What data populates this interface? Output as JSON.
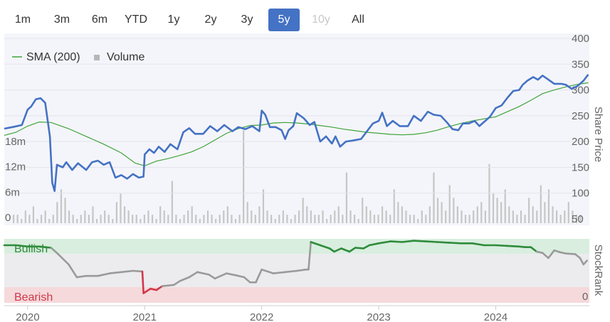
{
  "range_buttons": [
    {
      "label": "1m",
      "state": "normal"
    },
    {
      "label": "3m",
      "state": "normal"
    },
    {
      "label": "6m",
      "state": "normal"
    },
    {
      "label": "YTD",
      "state": "normal"
    },
    {
      "label": "1y",
      "state": "normal"
    },
    {
      "label": "2y",
      "state": "normal"
    },
    {
      "label": "3y",
      "state": "normal"
    },
    {
      "label": "5y",
      "state": "active"
    },
    {
      "label": "10y",
      "state": "disabled"
    },
    {
      "label": "All",
      "state": "normal"
    }
  ],
  "legend": {
    "sma_label": "SMA (200)",
    "volume_label": "Volume",
    "volume_icon": "square-icon"
  },
  "labels": {
    "price_axis_title": "Share Price",
    "rank_axis_title": "StockRank",
    "bullish": "Bullish",
    "bearish": "Bearish",
    "rank_zero": "0"
  },
  "colors": {
    "price_line": "#4472c4",
    "sma_line": "#3ea33a",
    "volume_bar": "#c6c6c6",
    "bullish_band": "#d9eedf",
    "bearish_band": "#f5d9db",
    "bullish_line": "#2e8b3a",
    "bearish_line": "#d0384a",
    "neutral_line": "#9a9a9a",
    "active_button": "#4472c4"
  },
  "chart_data": [
    {
      "type": "line",
      "name": "price",
      "x_ticks": [
        "2020",
        "2021",
        "2022",
        "2023",
        "2024"
      ],
      "x_range": [
        2019.8,
        2024.8
      ],
      "price_ticks": [
        50,
        100,
        150,
        200,
        250,
        300,
        350,
        400
      ],
      "price_range": [
        50,
        400
      ],
      "volume_ticks": [
        "0",
        "6m",
        "12m",
        "18m"
      ],
      "volume_range_m": [
        0,
        30
      ],
      "series": [
        {
          "name": "Price",
          "points": [
            [
              2019.8,
              225
            ],
            [
              2019.87,
              228
            ],
            [
              2019.95,
              232
            ],
            [
              2020.0,
              262
            ],
            [
              2020.03,
              268
            ],
            [
              2020.07,
              282
            ],
            [
              2020.11,
              284
            ],
            [
              2020.15,
              275
            ],
            [
              2020.19,
              210
            ],
            [
              2020.21,
              120
            ],
            [
              2020.23,
              104
            ],
            [
              2020.25,
              155
            ],
            [
              2020.3,
              150
            ],
            [
              2020.33,
              160
            ],
            [
              2020.38,
              145
            ],
            [
              2020.43,
              158
            ],
            [
              2020.5,
              145
            ],
            [
              2020.55,
              160
            ],
            [
              2020.6,
              163
            ],
            [
              2020.65,
              155
            ],
            [
              2020.7,
              160
            ],
            [
              2020.75,
              130
            ],
            [
              2020.8,
              135
            ],
            [
              2020.85,
              128
            ],
            [
              2020.9,
              137
            ],
            [
              2020.95,
              130
            ],
            [
              2020.99,
              132
            ],
            [
              2021.0,
              175
            ],
            [
              2021.04,
              185
            ],
            [
              2021.08,
              178
            ],
            [
              2021.12,
              190
            ],
            [
              2021.17,
              180
            ],
            [
              2021.22,
              195
            ],
            [
              2021.28,
              185
            ],
            [
              2021.33,
              218
            ],
            [
              2021.38,
              226
            ],
            [
              2021.43,
              215
            ],
            [
              2021.5,
              215
            ],
            [
              2021.56,
              230
            ],
            [
              2021.62,
              220
            ],
            [
              2021.68,
              232
            ],
            [
              2021.75,
              220
            ],
            [
              2021.8,
              228
            ],
            [
              2021.86,
              224
            ],
            [
              2021.92,
              230
            ],
            [
              2021.98,
              220
            ],
            [
              2022.0,
              260
            ],
            [
              2022.03,
              252
            ],
            [
              2022.07,
              228
            ],
            [
              2022.12,
              228
            ],
            [
              2022.17,
              222
            ],
            [
              2022.2,
              205
            ],
            [
              2022.23,
              222
            ],
            [
              2022.27,
              230
            ],
            [
              2022.3,
              255
            ],
            [
              2022.36,
              245
            ],
            [
              2022.41,
              232
            ],
            [
              2022.45,
              238
            ],
            [
              2022.5,
              200
            ],
            [
              2022.55,
              210
            ],
            [
              2022.6,
              196
            ],
            [
              2022.63,
              210
            ],
            [
              2022.67,
              190
            ],
            [
              2022.72,
              200
            ],
            [
              2022.78,
              202
            ],
            [
              2022.85,
              205
            ],
            [
              2022.9,
              220
            ],
            [
              2022.95,
              235
            ],
            [
              2023.0,
              240
            ],
            [
              2023.03,
              256
            ],
            [
              2023.07,
              230
            ],
            [
              2023.12,
              240
            ],
            [
              2023.18,
              230
            ],
            [
              2023.25,
              230
            ],
            [
              2023.3,
              250
            ],
            [
              2023.36,
              240
            ],
            [
              2023.42,
              258
            ],
            [
              2023.47,
              252
            ],
            [
              2023.53,
              250
            ],
            [
              2023.58,
              238
            ],
            [
              2023.63,
              224
            ],
            [
              2023.68,
              222
            ],
            [
              2023.72,
              235
            ],
            [
              2023.77,
              235
            ],
            [
              2023.82,
              240
            ],
            [
              2023.86,
              230
            ],
            [
              2023.91,
              240
            ],
            [
              2023.95,
              248
            ],
            [
              2024.0,
              265
            ],
            [
              2024.05,
              270
            ],
            [
              2024.1,
              285
            ],
            [
              2024.15,
              298
            ],
            [
              2024.2,
              300
            ],
            [
              2024.23,
              310
            ],
            [
              2024.27,
              318
            ],
            [
              2024.32,
              325
            ],
            [
              2024.36,
              320
            ],
            [
              2024.4,
              328
            ],
            [
              2024.45,
              320
            ],
            [
              2024.5,
              312
            ],
            [
              2024.56,
              312
            ],
            [
              2024.6,
              310
            ],
            [
              2024.65,
              302
            ],
            [
              2024.7,
              308
            ],
            [
              2024.75,
              318
            ],
            [
              2024.79,
              330
            ]
          ]
        },
        {
          "name": "SMA (200)",
          "points": [
            [
              2019.8,
              212
            ],
            [
              2019.9,
              218
            ],
            [
              2020.0,
              230
            ],
            [
              2020.1,
              238
            ],
            [
              2020.2,
              237
            ],
            [
              2020.35,
              225
            ],
            [
              2020.5,
              210
            ],
            [
              2020.65,
              195
            ],
            [
              2020.8,
              178
            ],
            [
              2020.92,
              158
            ],
            [
              2021.0,
              153
            ],
            [
              2021.1,
              162
            ],
            [
              2021.2,
              167
            ],
            [
              2021.3,
              173
            ],
            [
              2021.4,
              180
            ],
            [
              2021.5,
              190
            ],
            [
              2021.6,
              203
            ],
            [
              2021.7,
              216
            ],
            [
              2021.8,
              225
            ],
            [
              2021.9,
              231
            ],
            [
              2022.0,
              232
            ],
            [
              2022.1,
              236
            ],
            [
              2022.2,
              237
            ],
            [
              2022.3,
              236
            ],
            [
              2022.4,
              234
            ],
            [
              2022.5,
              231
            ],
            [
              2022.6,
              228
            ],
            [
              2022.7,
              224
            ],
            [
              2022.8,
              221
            ],
            [
              2022.9,
              218
            ],
            [
              2023.0,
              216
            ],
            [
              2023.1,
              214
            ],
            [
              2023.2,
              213
            ],
            [
              2023.3,
              214
            ],
            [
              2023.4,
              217
            ],
            [
              2023.5,
              222
            ],
            [
              2023.6,
              229
            ],
            [
              2023.7,
              235
            ],
            [
              2023.8,
              240
            ],
            [
              2023.9,
              244
            ],
            [
              2024.0,
              248
            ],
            [
              2024.1,
              258
            ],
            [
              2024.2,
              268
            ],
            [
              2024.3,
              280
            ],
            [
              2024.4,
              293
            ],
            [
              2024.5,
              300
            ],
            [
              2024.6,
              306
            ],
            [
              2024.7,
              311
            ],
            [
              2024.79,
              314
            ]
          ]
        }
      ],
      "volume_m": [
        2,
        2,
        1,
        3,
        2,
        4,
        1,
        2,
        3,
        1,
        2,
        5,
        8,
        6,
        3,
        2,
        1,
        2,
        3,
        2,
        4,
        1,
        2,
        3,
        2,
        1,
        5,
        7,
        4,
        3,
        2,
        2,
        1,
        2,
        3,
        2,
        1,
        4,
        3,
        2,
        10,
        2,
        1,
        2,
        3,
        4,
        2,
        1,
        2,
        3,
        2,
        1,
        2,
        3,
        4,
        2,
        1,
        2,
        22,
        5,
        3,
        2,
        4,
        8,
        3,
        2,
        1,
        2,
        3,
        2,
        1,
        2,
        3,
        6,
        4,
        3,
        2,
        2,
        3,
        1,
        2,
        3,
        4,
        2,
        12,
        3,
        2,
        1,
        6,
        4,
        3,
        2,
        2,
        4,
        3,
        2,
        8,
        5,
        4,
        3,
        2,
        2,
        1,
        3,
        2,
        4,
        12,
        6,
        5,
        3,
        9,
        6,
        4,
        3,
        2,
        2,
        3,
        4,
        5,
        3,
        14,
        7,
        6,
        5,
        8,
        4,
        3,
        2,
        3,
        2,
        6,
        4,
        3,
        9,
        5,
        8,
        4,
        3,
        2,
        3,
        5,
        3,
        2,
        2
      ]
    },
    {
      "type": "line",
      "name": "stockrank",
      "x_range": [
        2019.8,
        2024.8
      ],
      "y_range": [
        0,
        100
      ],
      "bands": {
        "bullish_min": 80,
        "bearish_max": 20
      },
      "series": [
        {
          "name": "StockRank",
          "points": [
            [
              2019.8,
              90
            ],
            [
              2019.9,
              90
            ],
            [
              2020.0,
              88
            ],
            [
              2020.1,
              88
            ],
            [
              2020.2,
              86
            ],
            [
              2020.25,
              78
            ],
            [
              2020.35,
              60
            ],
            [
              2020.42,
              40
            ],
            [
              2020.5,
              42
            ],
            [
              2020.6,
              42
            ],
            [
              2020.7,
              46
            ],
            [
              2020.8,
              48
            ],
            [
              2020.9,
              50
            ],
            [
              2020.98,
              49
            ],
            [
              2020.99,
              15
            ],
            [
              2021.05,
              22
            ],
            [
              2021.1,
              20
            ],
            [
              2021.15,
              26
            ],
            [
              2021.25,
              28
            ],
            [
              2021.3,
              34
            ],
            [
              2021.38,
              40
            ],
            [
              2021.45,
              48
            ],
            [
              2021.55,
              44
            ],
            [
              2021.6,
              38
            ],
            [
              2021.7,
              46
            ],
            [
              2021.78,
              43
            ],
            [
              2021.85,
              40
            ],
            [
              2021.9,
              32
            ],
            [
              2021.95,
              32
            ],
            [
              2022.0,
              52
            ],
            [
              2022.1,
              46
            ],
            [
              2022.2,
              48
            ],
            [
              2022.3,
              50
            ],
            [
              2022.38,
              52
            ],
            [
              2022.4,
              52
            ],
            [
              2022.42,
              95
            ],
            [
              2022.5,
              90
            ],
            [
              2022.58,
              85
            ],
            [
              2022.62,
              80
            ],
            [
              2022.68,
              85
            ],
            [
              2022.75,
              80
            ],
            [
              2022.8,
              86
            ],
            [
              2022.87,
              85
            ],
            [
              2022.92,
              90
            ],
            [
              2023.0,
              93
            ],
            [
              2023.1,
              96
            ],
            [
              2023.2,
              95
            ],
            [
              2023.3,
              97
            ],
            [
              2023.4,
              96
            ],
            [
              2023.5,
              95
            ],
            [
              2023.6,
              94
            ],
            [
              2023.7,
              93
            ],
            [
              2023.8,
              93
            ],
            [
              2023.9,
              90
            ],
            [
              2024.0,
              90
            ],
            [
              2024.1,
              89
            ],
            [
              2024.2,
              88
            ],
            [
              2024.25,
              87
            ],
            [
              2024.3,
              87
            ],
            [
              2024.35,
              80
            ],
            [
              2024.4,
              78
            ],
            [
              2024.45,
              70
            ],
            [
              2024.5,
              82
            ],
            [
              2024.55,
              79
            ],
            [
              2024.6,
              77
            ],
            [
              2024.68,
              76
            ],
            [
              2024.72,
              70
            ],
            [
              2024.75,
              60
            ],
            [
              2024.78,
              66
            ]
          ]
        }
      ]
    }
  ]
}
